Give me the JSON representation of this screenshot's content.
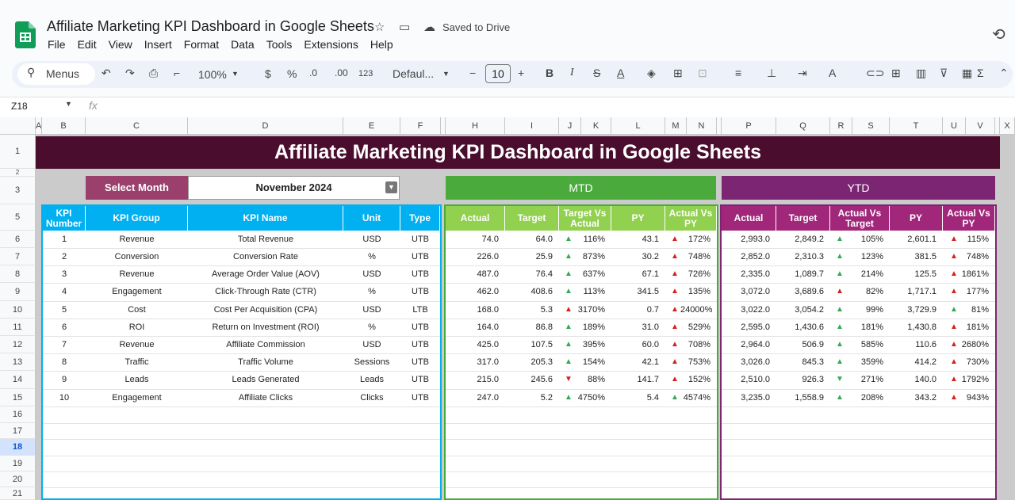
{
  "app": {
    "title": "Affiliate Marketing KPI Dashboard in Google Sheets",
    "saved": "Saved to Drive",
    "menus": [
      "File",
      "Edit",
      "View",
      "Insert",
      "Format",
      "Data",
      "Tools",
      "Extensions",
      "Help"
    ]
  },
  "toolbar": {
    "menus_label": "Menus",
    "zoom": "100%",
    "currency": "$",
    "percent": "%",
    "dec_dec": ".0",
    "inc_dec": ".00",
    "format_123": "123",
    "font": "Defaul...",
    "font_size": "10"
  },
  "formula": {
    "name_box": "Z18",
    "fx": "fx"
  },
  "columns": [
    "A",
    "B",
    "C",
    "D",
    "E",
    "F",
    "",
    "H",
    "I",
    "J",
    "K",
    "L",
    "M",
    "N",
    "",
    "P",
    "Q",
    "R",
    "S",
    "T",
    "U",
    "V",
    "",
    "X"
  ],
  "rows": [
    "1",
    "2",
    "3",
    "5",
    "6",
    "7",
    "8",
    "9",
    "10",
    "11",
    "12",
    "13",
    "14",
    "15",
    "16",
    "17",
    "18",
    "19",
    "20",
    "21"
  ],
  "dashboard": {
    "title": "Affiliate Marketing KPI Dashboard in Google Sheets",
    "select_month_label": "Select Month",
    "month": "November 2024",
    "mtd_label": "MTD",
    "ytd_label": "YTD",
    "headers": {
      "kpi_number": "KPI Number",
      "kpi_group": "KPI Group",
      "kpi_name": "KPI Name",
      "unit": "Unit",
      "type": "Type",
      "mtd": [
        "Actual",
        "Target",
        "Target Vs Actual",
        "PY",
        "Actual Vs PY"
      ],
      "ytd": [
        "Actual",
        "Target",
        "Actual Vs Target",
        "PY",
        "Actual Vs PY"
      ]
    },
    "kpis": [
      {
        "n": "1",
        "group": "Revenue",
        "name": "Total Revenue",
        "unit": "USD",
        "type": "UTB",
        "m_act": "74.0",
        "m_tgt": "64.0",
        "m_tva": "116%",
        "m_tva_dir": "up-g",
        "m_py": "43.1",
        "m_avp": "172%",
        "m_avp_dir": "up-r",
        "y_act": "2,993.0",
        "y_tgt": "2,849.2",
        "y_avt": "105%",
        "y_avt_dir": "up-g",
        "y_py": "2,601.1",
        "y_avp": "115%",
        "y_avp_dir": "up-r"
      },
      {
        "n": "2",
        "group": "Conversion",
        "name": "Conversion Rate",
        "unit": "%",
        "type": "UTB",
        "m_act": "226.0",
        "m_tgt": "25.9",
        "m_tva": "873%",
        "m_tva_dir": "up-g",
        "m_py": "30.2",
        "m_avp": "748%",
        "m_avp_dir": "up-r",
        "y_act": "2,852.0",
        "y_tgt": "2,310.3",
        "y_avt": "123%",
        "y_avt_dir": "up-g",
        "y_py": "381.5",
        "y_avp": "748%",
        "y_avp_dir": "up-r"
      },
      {
        "n": "3",
        "group": "Revenue",
        "name": "Average Order Value (AOV)",
        "unit": "USD",
        "type": "UTB",
        "m_act": "487.0",
        "m_tgt": "76.4",
        "m_tva": "637%",
        "m_tva_dir": "up-g",
        "m_py": "67.1",
        "m_avp": "726%",
        "m_avp_dir": "up-r",
        "y_act": "2,335.0",
        "y_tgt": "1,089.7",
        "y_avt": "214%",
        "y_avt_dir": "up-g",
        "y_py": "125.5",
        "y_avp": "1861%",
        "y_avp_dir": "up-r"
      },
      {
        "n": "4",
        "group": "Engagement",
        "name": "Click-Through Rate (CTR)",
        "unit": "%",
        "type": "UTB",
        "m_act": "462.0",
        "m_tgt": "408.6",
        "m_tva": "113%",
        "m_tva_dir": "up-g",
        "m_py": "341.5",
        "m_avp": "135%",
        "m_avp_dir": "up-r",
        "y_act": "3,072.0",
        "y_tgt": "3,689.6",
        "y_avt": "82%",
        "y_avt_dir": "up-r",
        "y_py": "1,717.1",
        "y_avp": "177%",
        "y_avp_dir": "up-r"
      },
      {
        "n": "5",
        "group": "Cost",
        "name": "Cost Per Acquisition (CPA)",
        "unit": "USD",
        "type": "LTB",
        "m_act": "168.0",
        "m_tgt": "5.3",
        "m_tva": "3170%",
        "m_tva_dir": "up-r",
        "m_py": "0.7",
        "m_avp": "24000%",
        "m_avp_dir": "up-r",
        "y_act": "3,022.0",
        "y_tgt": "3,054.2",
        "y_avt": "99%",
        "y_avt_dir": "up-g",
        "y_py": "3,729.9",
        "y_avp": "81%",
        "y_avp_dir": "up-g"
      },
      {
        "n": "6",
        "group": "ROI",
        "name": "Return on Investment (ROI)",
        "unit": "%",
        "type": "UTB",
        "m_act": "164.0",
        "m_tgt": "86.8",
        "m_tva": "189%",
        "m_tva_dir": "up-g",
        "m_py": "31.0",
        "m_avp": "529%",
        "m_avp_dir": "up-r",
        "y_act": "2,595.0",
        "y_tgt": "1,430.6",
        "y_avt": "181%",
        "y_avt_dir": "up-g",
        "y_py": "1,430.8",
        "y_avp": "181%",
        "y_avp_dir": "up-r"
      },
      {
        "n": "7",
        "group": "Revenue",
        "name": "Affiliate Commission",
        "unit": "USD",
        "type": "UTB",
        "m_act": "425.0",
        "m_tgt": "107.5",
        "m_tva": "395%",
        "m_tva_dir": "up-g",
        "m_py": "60.0",
        "m_avp": "708%",
        "m_avp_dir": "up-r",
        "y_act": "2,964.0",
        "y_tgt": "506.9",
        "y_avt": "585%",
        "y_avt_dir": "up-g",
        "y_py": "110.6",
        "y_avp": "2680%",
        "y_avp_dir": "up-r"
      },
      {
        "n": "8",
        "group": "Traffic",
        "name": "Traffic Volume",
        "unit": "Sessions",
        "type": "UTB",
        "m_act": "317.0",
        "m_tgt": "205.3",
        "m_tva": "154%",
        "m_tva_dir": "up-g",
        "m_py": "42.1",
        "m_avp": "753%",
        "m_avp_dir": "up-r",
        "y_act": "3,026.0",
        "y_tgt": "845.3",
        "y_avt": "359%",
        "y_avt_dir": "up-g",
        "y_py": "414.2",
        "y_avp": "730%",
        "y_avp_dir": "up-r"
      },
      {
        "n": "9",
        "group": "Leads",
        "name": "Leads Generated",
        "unit": "Leads",
        "type": "UTB",
        "m_act": "215.0",
        "m_tgt": "245.6",
        "m_tva": "88%",
        "m_tva_dir": "dn-r",
        "m_py": "141.7",
        "m_avp": "152%",
        "m_avp_dir": "up-r",
        "y_act": "2,510.0",
        "y_tgt": "926.3",
        "y_avt": "271%",
        "y_avt_dir": "dn-g",
        "y_py": "140.0",
        "y_avp": "1792%",
        "y_avp_dir": "up-r"
      },
      {
        "n": "10",
        "group": "Engagement",
        "name": "Affiliate Clicks",
        "unit": "Clicks",
        "type": "UTB",
        "m_act": "247.0",
        "m_tgt": "5.2",
        "m_tva": "4750%",
        "m_tva_dir": "up-g",
        "m_py": "5.4",
        "m_avp": "4574%",
        "m_avp_dir": "up-g",
        "y_act": "3,235.0",
        "y_tgt": "1,558.9",
        "y_avt": "208%",
        "y_avt_dir": "up-g",
        "y_py": "343.2",
        "y_avp": "943%",
        "y_avp_dir": "up-r"
      }
    ]
  },
  "colors": {
    "banner": "#4a0d2e",
    "select_month": "#9b3f6d",
    "kpi_header": "#00b0f0",
    "mtd": "#4aaa3c",
    "mtd_header": "#92d050",
    "ytd": "#7b2573",
    "ytd_header": "#a0277a"
  }
}
